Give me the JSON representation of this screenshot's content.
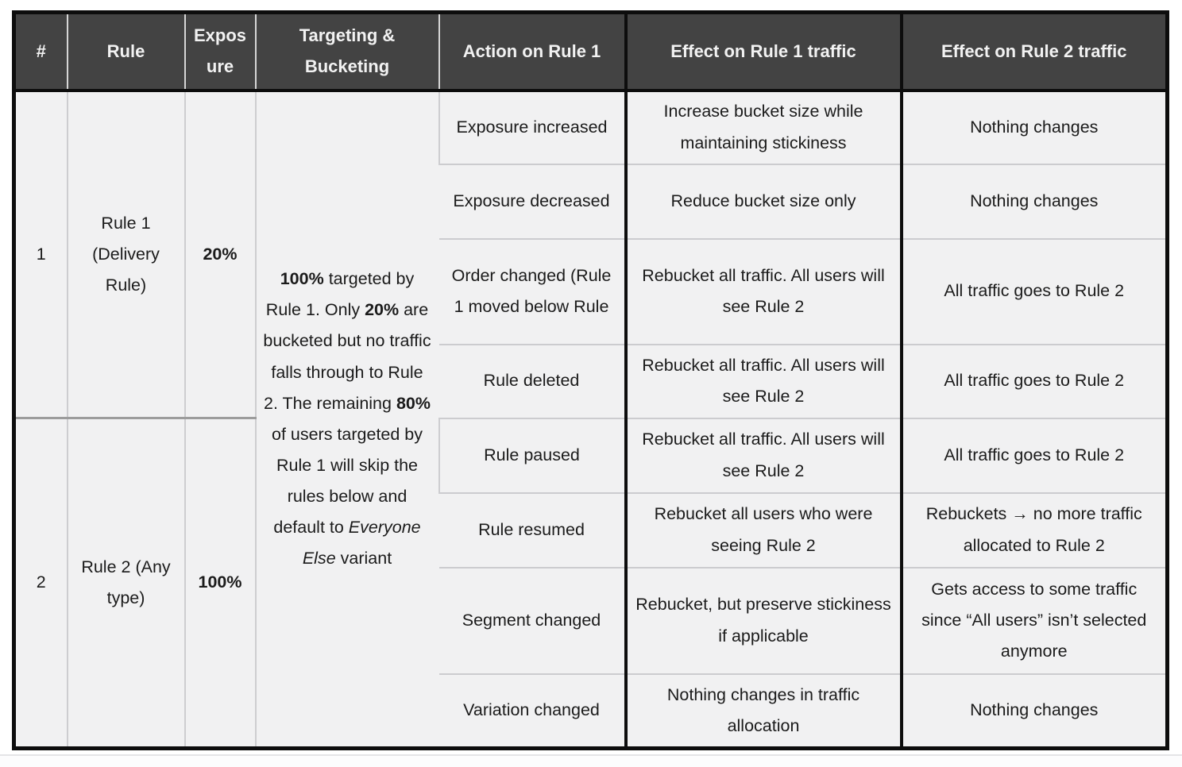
{
  "table": {
    "headers": {
      "number": "#",
      "rule": "Rule",
      "exposure": "Exposure",
      "targeting": "Targeting & Bucketing",
      "action": "Action on Rule 1",
      "effect_rule1": "Effect on Rule 1 traffic",
      "effect_rule2": "Effect on Rule 2 traffic"
    },
    "groups": [
      {
        "num": "1",
        "rule": "Rule 1 (Delivery Rule)",
        "exposure": "20%"
      },
      {
        "num": "2",
        "rule": "Rule 2 (Any type)",
        "exposure": "100%"
      }
    ],
    "targeting": {
      "segments": [
        {
          "text": "100%",
          "style": "bold"
        },
        {
          "text": " targeted by Rule 1. Only ",
          "style": "normal"
        },
        {
          "text": "20%",
          "style": "bold"
        },
        {
          "text": " are  bucketed but no traffic falls through to Rule 2. The remaining ",
          "style": "normal"
        },
        {
          "text": "80%",
          "style": "bold"
        },
        {
          "text": " of users targeted by Rule 1 will skip the rules below and default to ",
          "style": "normal"
        },
        {
          "text": "Everyone Else",
          "style": "italic"
        },
        {
          "text": " variant",
          "style": "normal"
        }
      ]
    },
    "rows": [
      {
        "action": "Exposure increased",
        "effect_rule1": "Increase bucket size while maintaining stickiness",
        "effect_rule2": "Nothing changes"
      },
      {
        "action": "Exposure decreased",
        "effect_rule1": "Reduce bucket size only",
        "effect_rule2": "Nothing changes"
      },
      {
        "action": "Order changed (Rule 1 moved below Rule",
        "effect_rule1": "Rebucket all traffic. All users will see Rule 2",
        "effect_rule2": "All traffic goes to Rule 2"
      },
      {
        "action": "Rule deleted",
        "effect_rule1": "Rebucket all traffic. All users will see Rule 2",
        "effect_rule2": "All traffic goes to Rule 2"
      },
      {
        "action": "Rule paused",
        "effect_rule1": "Rebucket all traffic. All users will see Rule 2",
        "effect_rule2": "All traffic goes to Rule 2"
      },
      {
        "action": "Rule resumed",
        "effect_rule1": "Rebucket all users who were seeing Rule 2",
        "effect_rule2": "Rebuckets → no more traffic allocated to Rule 2"
      },
      {
        "action": "Segment changed",
        "effect_rule1": "Rebucket, but preserve stickiness if applicable",
        "effect_rule2": "Gets access to some traffic since “All users” isn’t selected anymore"
      },
      {
        "action": "Variation changed",
        "effect_rule1": "Nothing changes in traffic allocation",
        "effect_rule2": "Nothing changes"
      }
    ]
  },
  "colors": {
    "header_background": "#434343",
    "header_text": "#f2f2f2",
    "cell_background": "#f1f1f2",
    "body_text": "#1b1b1b",
    "thick_border": "#0d0d0d",
    "thin_border": "#cdcdd0",
    "group_divider": "#9c9c9c"
  }
}
